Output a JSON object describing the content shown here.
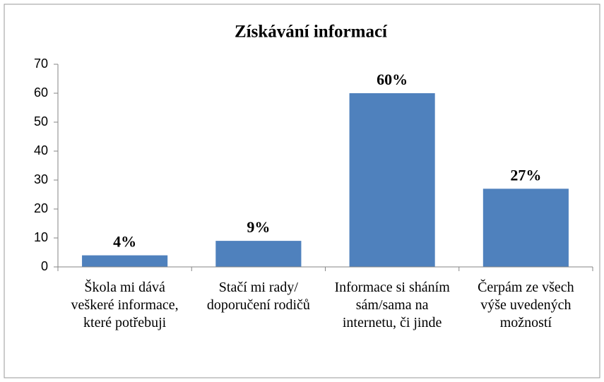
{
  "chart_data": {
    "type": "bar",
    "title": "Získávání informací",
    "categories": [
      "Škola mi dává veškeré informace, které potřebuji",
      "Stačí mi rady/ doporučení rodičů",
      "Informace si sháním sám/sama na internetu, či jinde",
      "Čerpám ze všech výše uvedených možností"
    ],
    "values": [
      4,
      9,
      60,
      27
    ],
    "value_labels": [
      "4%",
      "9%",
      "60%",
      "27%"
    ],
    "color": "#4f81bd",
    "ylim": [
      0,
      70
    ],
    "yticks": [
      0,
      10,
      20,
      30,
      40,
      50,
      60,
      70
    ],
    "grid": false
  }
}
